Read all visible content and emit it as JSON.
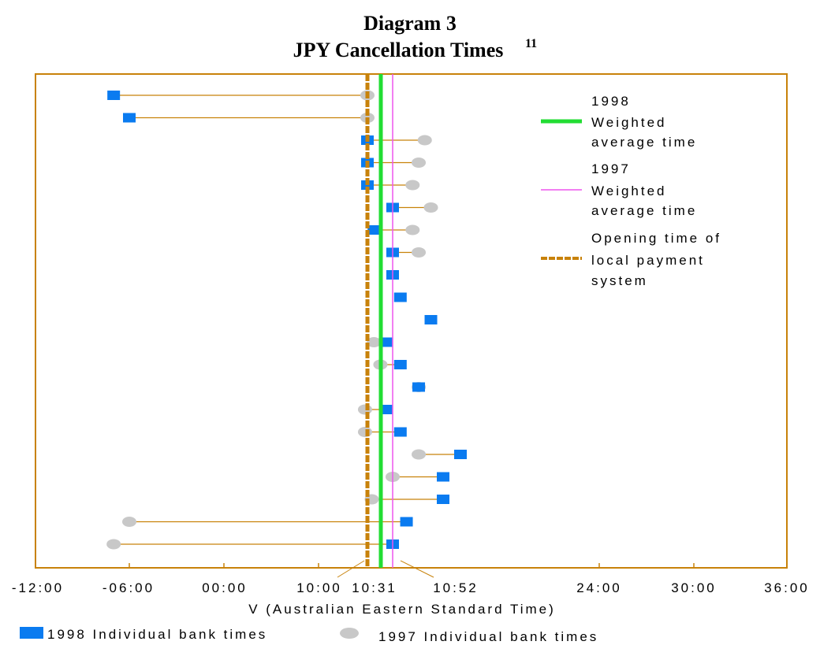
{
  "chart_data": {
    "type": "scatter",
    "title": "Diagram 3",
    "subtitle": "JPY Cancellation Times",
    "subtitle_superscript": "11",
    "xlabel": "V (Australian Eastern Standard Time)",
    "x_ticks": [
      "-12:00",
      "-06:00",
      "00:00",
      "10:00",
      "10:31",
      "10:52",
      "24:00",
      "30:00",
      "36:00"
    ],
    "weighted_average_1998": "10:31",
    "weighted_average_1997": "10:52",
    "opening_time": "10:00",
    "series": [
      {
        "name": "1998 Individual bank times",
        "color": "#0a7bf0",
        "marker": "square",
        "values": [
          "-07:00",
          "-06:00",
          "10:00",
          "10:00",
          "10:00",
          "10:52",
          "10:15",
          "10:52",
          "10:52",
          "11:30",
          "14:00",
          "10:40",
          "11:30",
          "13:00",
          "10:40",
          "11:30",
          "16:00",
          "15:00",
          "15:00",
          "12:00",
          "10:52"
        ]
      },
      {
        "name": "1997 Individual bank times",
        "color": "#c8c8c8",
        "marker": "circle",
        "values": [
          "10:00",
          "10:00",
          "13:30",
          "13:00",
          "12:30",
          "14:00",
          "12:30",
          "13:00",
          null,
          null,
          null,
          "10:15",
          "10:30",
          "13:00",
          "09:50",
          "09:50",
          "13:00",
          "10:52",
          "10:10",
          "-06:00",
          "-07:00"
        ]
      }
    ]
  },
  "legend": {
    "avg1998_year": "1998",
    "avg1998_line1": "Weighted",
    "avg1998_line2": "average time",
    "avg1997_year": "1997",
    "avg1997_line1": "Weighted",
    "avg1997_line2": "average time",
    "opening_line1": "Opening time of",
    "opening_line2": "local payment",
    "opening_line3": "system",
    "color_avg1998": "#22dd33",
    "color_avg1997": "#ee55ee",
    "color_opening": "#c8820a"
  },
  "bottom_legend": {
    "label_1998": "1998 Individual bank times",
    "label_1997": "1997 Individual bank times"
  }
}
